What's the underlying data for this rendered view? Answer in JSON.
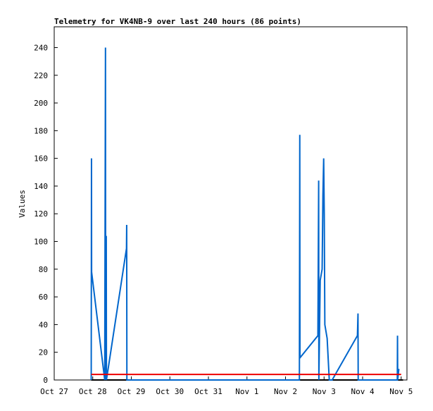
{
  "chart_data": {
    "type": "line",
    "title": "Telemetry for VK4NB-9 over last 240 hours (86 points)",
    "y_label": "Values",
    "xlim": [
      0,
      9.15
    ],
    "xticks": [
      {
        "value": 0,
        "label": "Oct 27"
      },
      {
        "value": 1,
        "label": "Oct 28"
      },
      {
        "value": 2,
        "label": "Oct 29"
      },
      {
        "value": 3,
        "label": "Oct 30"
      },
      {
        "value": 4,
        "label": "Oct 31"
      },
      {
        "value": 5,
        "label": "Nov 1"
      },
      {
        "value": 6,
        "label": "Nov 2"
      },
      {
        "value": 7,
        "label": "Nov 3"
      },
      {
        "value": 8,
        "label": "Nov 4"
      },
      {
        "value": 9,
        "label": "Nov 5"
      }
    ],
    "ylim": [
      0,
      255
    ],
    "yticks": [
      0,
      20,
      40,
      60,
      80,
      100,
      120,
      140,
      160,
      180,
      200,
      220,
      240
    ],
    "series": [
      {
        "color": "#000000",
        "x": [
          0.96,
          9.05
        ],
        "values": [
          0,
          0
        ]
      },
      {
        "color": "#0066cc",
        "x": [
          0.96,
          0.967,
          0.97,
          1.31,
          1.33,
          1.335,
          1.35,
          1.355,
          1.875,
          1.88,
          1.885,
          6.36,
          6.365,
          6.37,
          6.375,
          6.84,
          6.86,
          6.865,
          6.9,
          6.95,
          6.97,
          6.99,
          7.005,
          7.02,
          7.08,
          7.135,
          7.21,
          7.865,
          7.88,
          7.885,
          8.9,
          8.905,
          8.91,
          8.94
        ],
        "values": [
          0,
          160,
          78,
          0,
          240,
          0,
          104,
          0,
          95,
          112,
          0,
          0,
          88,
          177,
          16,
          32,
          144,
          0,
          72,
          80,
          133,
          160,
          120,
          40,
          30,
          0,
          0,
          32,
          48,
          0,
          0,
          32,
          0,
          8
        ]
      },
      {
        "color": "#ee0000",
        "x": [
          0.96,
          9.0
        ],
        "values": [
          4,
          4
        ]
      }
    ]
  }
}
